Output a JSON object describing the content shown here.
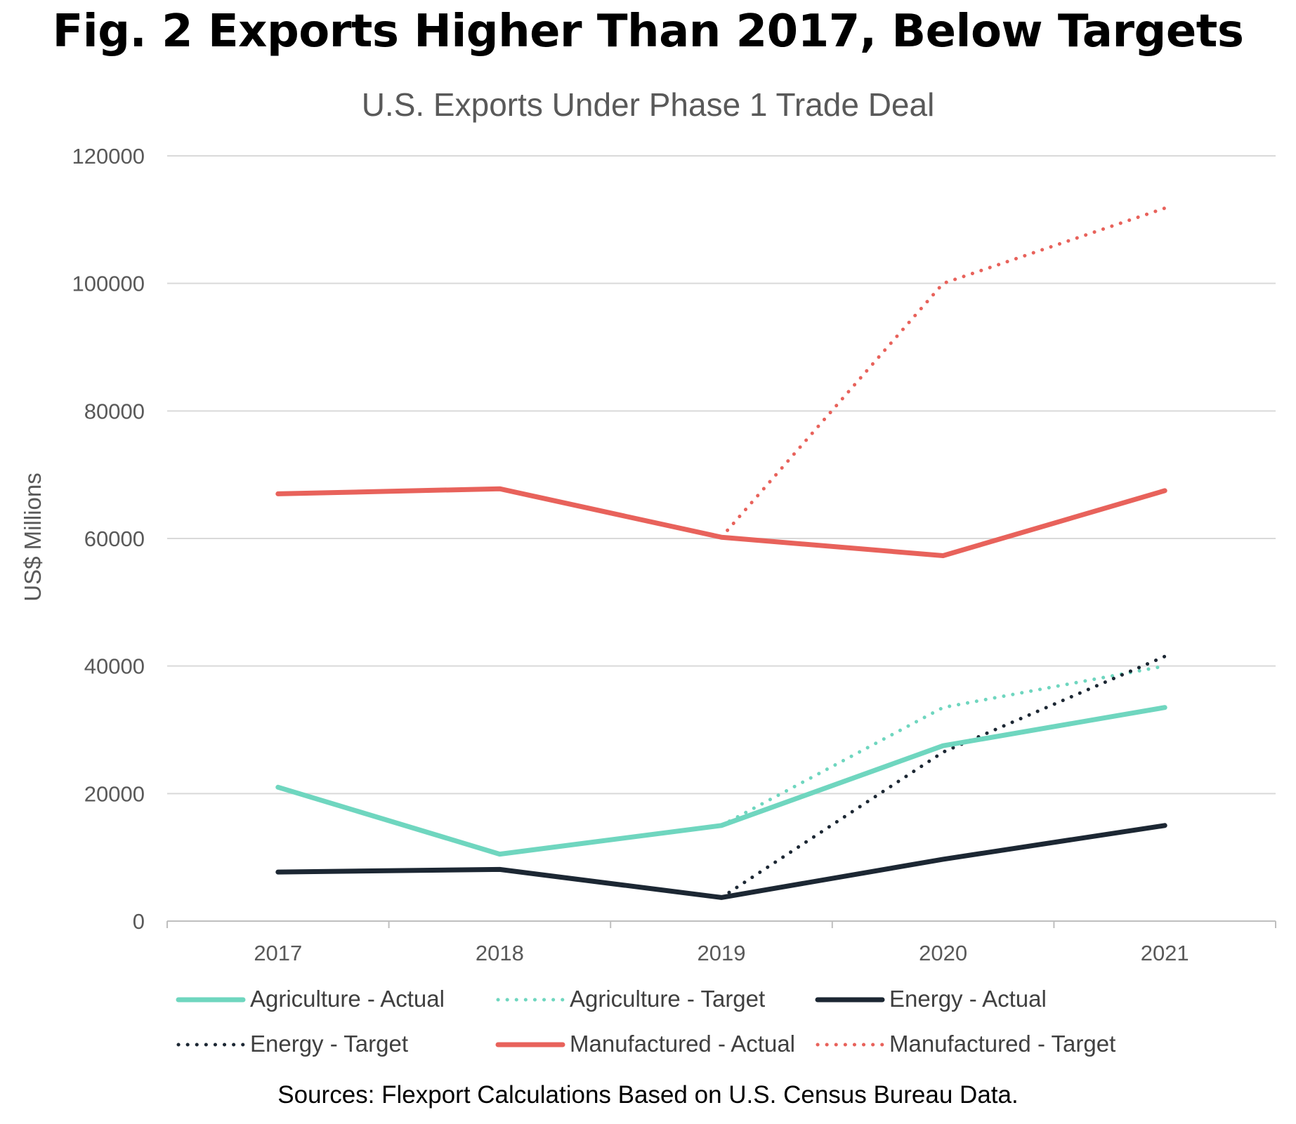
{
  "title": "Fig. 2 Exports Higher Than 2017, Below Targets",
  "source": "Sources: Flexport Calculations Based on U.S. Census Bureau Data.",
  "chart_data": {
    "type": "line",
    "title": "U.S. Exports Under Phase 1 Trade Deal",
    "xlabel": "",
    "ylabel": "US$ Millions",
    "ylim": [
      0,
      120000
    ],
    "yticks": [
      "0",
      "20000",
      "40000",
      "60000",
      "80000",
      "100000",
      "120000"
    ],
    "categories": [
      "2017",
      "2018",
      "2019",
      "2020",
      "2021"
    ],
    "grid": true,
    "legend_position": "bottom",
    "series": [
      {
        "name": "Agriculture - Actual",
        "color": "#6fd6bf",
        "style": "solid",
        "values": [
          21000,
          10500,
          15000,
          27500,
          33500
        ]
      },
      {
        "name": "Agriculture - Target",
        "color": "#6fd6bf",
        "style": "dotted",
        "values": [
          null,
          null,
          15000,
          33500,
          40000
        ]
      },
      {
        "name": "Energy - Actual",
        "color": "#1c2733",
        "style": "solid",
        "values": [
          7700,
          8100,
          3700,
          9700,
          15000
        ]
      },
      {
        "name": "Energy - Target",
        "color": "#1c2733",
        "style": "dotted",
        "values": [
          null,
          null,
          3700,
          26500,
          41500
        ]
      },
      {
        "name": "Manufactured - Actual",
        "color": "#e8625b",
        "style": "solid",
        "values": [
          67000,
          67800,
          60200,
          57300,
          67500
        ]
      },
      {
        "name": "Manufactured - Target",
        "color": "#e8625b",
        "style": "dotted",
        "values": [
          null,
          null,
          60200,
          100000,
          111800
        ]
      }
    ]
  }
}
